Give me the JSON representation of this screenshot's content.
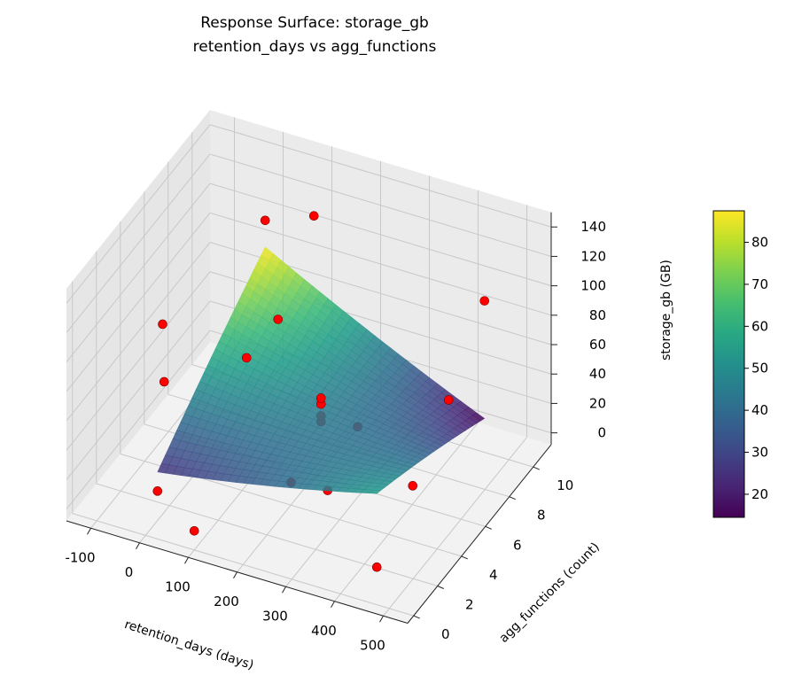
{
  "chart_data": {
    "type": "surface3d",
    "title": "Response Surface: storage_gb",
    "subtitle": "retention_days vs agg_functions",
    "xlabel": "retention_days (days)",
    "ylabel": "agg_functions (count)",
    "zlabel": "storage_gb (GB)",
    "xlim": [
      -150,
      550
    ],
    "ylim": [
      -0.5,
      11.5
    ],
    "zlim": [
      -8,
      150
    ],
    "xticks": [
      -100,
      0,
      100,
      200,
      300,
      400,
      500
    ],
    "yticks": [
      0,
      2,
      4,
      6,
      8,
      10
    ],
    "zticks": [
      0,
      20,
      40,
      60,
      80,
      100,
      120,
      140
    ],
    "grid": true,
    "colormap": "viridis",
    "colorbar": {
      "range": [
        14.5,
        87.5
      ],
      "ticks": [
        20,
        30,
        40,
        50,
        60,
        70,
        80
      ]
    },
    "surface": {
      "x_range": [
        0,
        450
      ],
      "y_range": [
        1,
        10
      ],
      "corner_values": {
        "x0_y0": 25,
        "x1_y0": 55,
        "x0_y1": 87,
        "x1_y1": 15
      }
    },
    "points_color": "#ff0000",
    "points": [
      {
        "x": 225,
        "y": 5.5,
        "z": 36
      },
      {
        "x": 225,
        "y": 5.5,
        "z": 40
      },
      {
        "x": 225,
        "y": 5.5,
        "z": 48
      },
      {
        "x": 225,
        "y": 5.5,
        "z": 52
      },
      {
        "x": 300,
        "y": 5.5,
        "z": 40
      },
      {
        "x": 0,
        "y": 10,
        "z": 105
      },
      {
        "x": 100,
        "y": 10,
        "z": 118
      },
      {
        "x": 100,
        "y": 7,
        "z": 78
      },
      {
        "x": 60,
        "y": 6,
        "z": 58
      },
      {
        "x": 450,
        "y": 10,
        "z": 95
      },
      {
        "x": 450,
        "y": 7,
        "z": 58
      },
      {
        "x": -100,
        "y": 5.5,
        "z": 70
      },
      {
        "x": -60,
        "y": 4,
        "z": 50
      },
      {
        "x": 0,
        "y": 1,
        "z": 12
      },
      {
        "x": 100,
        "y": 0,
        "z": 5
      },
      {
        "x": 225,
        "y": 3,
        "z": 20
      },
      {
        "x": 300,
        "y": 3,
        "z": 22
      },
      {
        "x": 450,
        "y": 4,
        "z": 30
      },
      {
        "x": 450,
        "y": 1,
        "z": 5
      }
    ]
  }
}
